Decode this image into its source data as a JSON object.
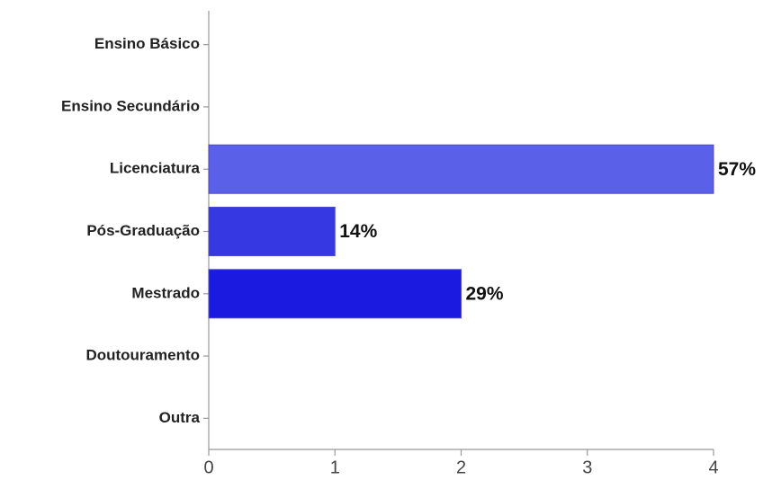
{
  "chart_data": {
    "type": "hbar",
    "categories": [
      "Ensino Básico",
      "Ensino Secundário",
      "Licenciatura",
      "Pós-Graduação",
      "Mestrado",
      "Doutouramento",
      "Outra"
    ],
    "values": [
      0,
      0,
      4,
      1,
      2,
      0,
      0
    ],
    "value_labels": [
      null,
      null,
      "57%",
      "14%",
      "29%",
      null,
      null
    ],
    "colors": [
      null,
      null,
      "#5b60e8",
      "#3638e2",
      "#1a1ae0",
      null,
      null
    ],
    "xlim": [
      0,
      4
    ],
    "xticks": [
      0,
      1,
      2,
      3,
      4
    ],
    "grid": false
  }
}
